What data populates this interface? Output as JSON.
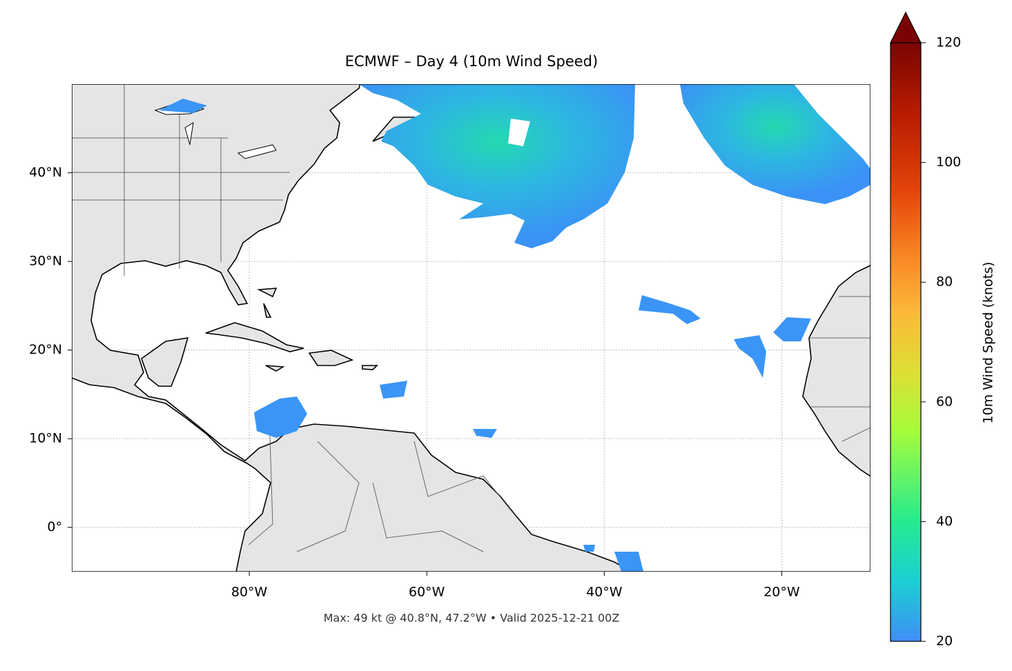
{
  "chart_data": {
    "type": "map",
    "title": "ECMWF – Day 4 (10m Wind Speed)",
    "note": "Max: 49 kt @ 40.8°N, 47.2°W • Valid 2025-12-21 00Z",
    "xlim": [
      -100,
      -10
    ],
    "ylim": [
      -5,
      50
    ],
    "xticks": [
      {
        "value": -80,
        "label": "80°W"
      },
      {
        "value": -60,
        "label": "60°W"
      },
      {
        "value": -40,
        "label": "40°W"
      },
      {
        "value": -20,
        "label": "20°W"
      }
    ],
    "yticks": [
      {
        "value": 0,
        "label": "0°"
      },
      {
        "value": 10,
        "label": "10°N"
      },
      {
        "value": 20,
        "label": "20°N"
      },
      {
        "value": 30,
        "label": "30°N"
      },
      {
        "value": 40,
        "label": "40°N"
      }
    ],
    "grid": true,
    "colorbar": {
      "label": "10m Wind Speed (knots)",
      "lim": [
        20,
        120
      ],
      "ticks": [
        20,
        40,
        60,
        80,
        100,
        120
      ]
    }
  }
}
